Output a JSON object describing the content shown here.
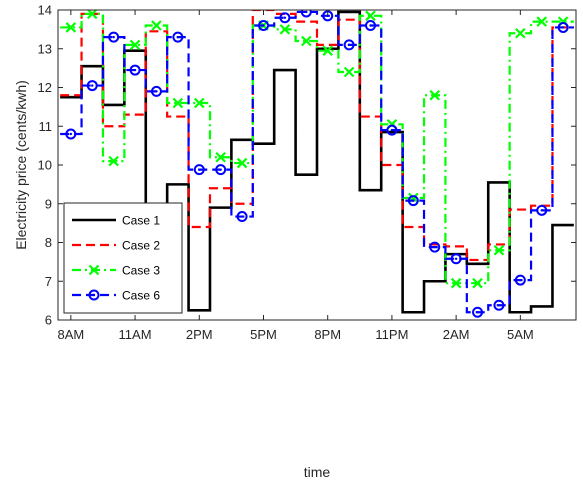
{
  "chart_data": {
    "type": "line",
    "step": true,
    "xlabel": "time",
    "ylabel": "Electricity price (cents/kwh)",
    "ylim": [
      6,
      14
    ],
    "yticks": [
      6,
      7,
      8,
      9,
      10,
      11,
      12,
      13,
      14
    ],
    "xlim": [
      0.4,
      24.6
    ],
    "xticks": [
      {
        "x": 1,
        "label": "8AM"
      },
      {
        "x": 4,
        "label": "11AM"
      },
      {
        "x": 7,
        "label": "2PM"
      },
      {
        "x": 10,
        "label": "5PM"
      },
      {
        "x": 13,
        "label": "8PM"
      },
      {
        "x": 16,
        "label": "11PM"
      },
      {
        "x": 19,
        "label": "2AM"
      },
      {
        "x": 22,
        "label": "5AM"
      }
    ],
    "legend_position": "bottom-left",
    "series": [
      {
        "name": "Case 1",
        "color": "#000000",
        "dash": "solid",
        "marker": "none",
        "x": [
          1,
          2,
          3,
          4,
          5,
          6,
          7,
          8,
          9,
          10,
          11,
          12,
          13,
          14,
          15,
          16,
          17,
          18,
          19,
          20,
          21,
          22,
          23,
          24
        ],
        "values": [
          11.75,
          12.55,
          11.55,
          12.95,
          7.8,
          9.5,
          6.25,
          8.9,
          10.65,
          10.55,
          12.45,
          9.75,
          13.0,
          13.95,
          9.35,
          10.85,
          6.2,
          7.0,
          7.7,
          7.45,
          9.55,
          6.2,
          6.35,
          8.45
        ]
      },
      {
        "name": "Case 2",
        "color": "#ff0000",
        "dash": "dashed",
        "marker": "none",
        "x": [
          1,
          2,
          3,
          4,
          5,
          6,
          7,
          8,
          9,
          10,
          11,
          12,
          13,
          14,
          15,
          16,
          17,
          18,
          19,
          20,
          21,
          22,
          23,
          24
        ],
        "values": [
          11.8,
          13.9,
          11.0,
          11.3,
          13.45,
          11.25,
          8.4,
          9.4,
          9.0,
          14.0,
          13.9,
          13.7,
          13.1,
          13.75,
          11.25,
          10.0,
          8.4,
          7.95,
          7.9,
          7.55,
          7.95,
          8.85,
          8.95,
          13.55
        ]
      },
      {
        "name": "Case 3",
        "color": "#00ff00",
        "dash": "dashdot",
        "marker": "x",
        "x": [
          1,
          2,
          3,
          4,
          5,
          6,
          7,
          8,
          9,
          10,
          11,
          12,
          13,
          14,
          15,
          16,
          17,
          18,
          19,
          20,
          21,
          22,
          23,
          24
        ],
        "values": [
          13.55,
          13.9,
          10.1,
          13.1,
          13.6,
          11.6,
          11.6,
          10.2,
          10.05,
          13.6,
          13.5,
          13.2,
          12.95,
          12.4,
          13.85,
          11.05,
          9.15,
          11.8,
          6.95,
          6.95,
          7.8,
          13.4,
          13.7,
          13.7
        ]
      },
      {
        "name": "Case 6",
        "color": "#0000ff",
        "dash": "dashed",
        "marker": "o",
        "x": [
          1,
          2,
          3,
          4,
          5,
          6,
          7,
          8,
          9,
          10,
          11,
          12,
          13,
          14,
          15,
          16,
          17,
          18,
          19,
          20,
          21,
          22,
          23,
          24
        ],
        "values": [
          10.8,
          12.05,
          13.3,
          12.45,
          11.9,
          13.3,
          9.88,
          9.88,
          8.67,
          13.6,
          13.8,
          13.95,
          13.85,
          13.1,
          13.6,
          10.9,
          9.08,
          7.88,
          7.58,
          6.2,
          6.38,
          7.03,
          8.83,
          13.55
        ]
      }
    ]
  }
}
